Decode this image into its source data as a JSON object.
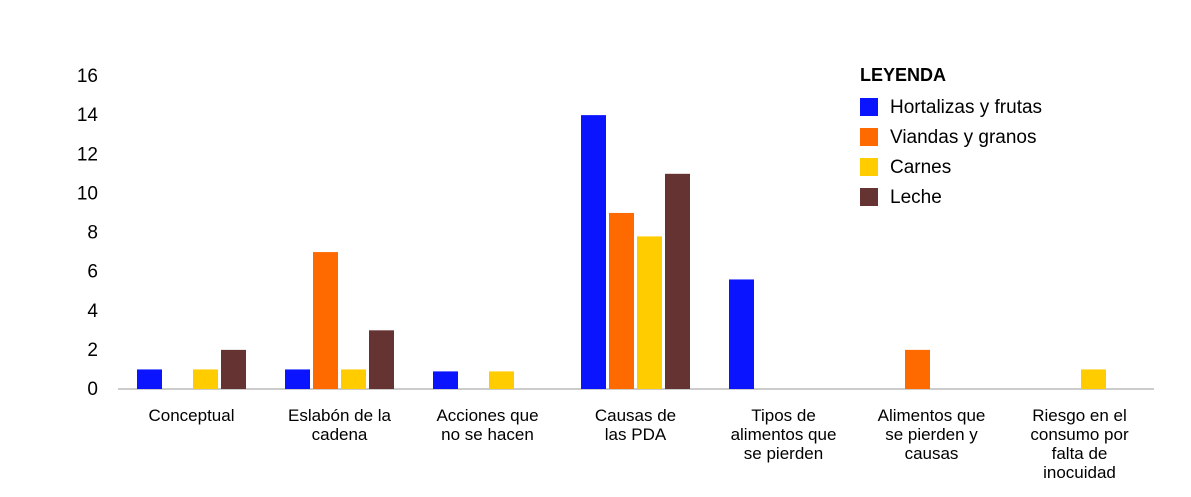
{
  "chart_data": {
    "type": "bar",
    "categories": [
      "Conceptual",
      "Eslabón de la\ncadena",
      "Acciones que\nno se hacen",
      "Causas de\nlas PDA",
      "Tipos de\nalimentos que\nse pierden",
      "Alimentos que\nse pierden y\ncausas",
      "Riesgo en el\nconsumo por\nfalta de\ninocuidad"
    ],
    "series": [
      {
        "name": "Hortalizas y frutas",
        "color": "#0a14ff",
        "values": [
          1,
          1,
          0.9,
          14,
          5.6,
          0,
          0
        ]
      },
      {
        "name": "Viandas y granos",
        "color": "#ff6a00",
        "values": [
          0,
          7,
          0,
          9,
          0,
          2,
          0
        ]
      },
      {
        "name": "Carnes",
        "color": "#ffcc00",
        "values": [
          1,
          1,
          0.9,
          7.8,
          0,
          0,
          1
        ]
      },
      {
        "name": "Leche",
        "color": "#663333",
        "values": [
          2,
          3,
          0,
          11,
          0,
          0,
          0
        ]
      }
    ],
    "legend_title": "LEYENDA",
    "legend": "top-right",
    "ylim": [
      0,
      16
    ],
    "yticks": [
      0,
      2,
      4,
      6,
      8,
      10,
      12,
      14,
      16
    ]
  }
}
